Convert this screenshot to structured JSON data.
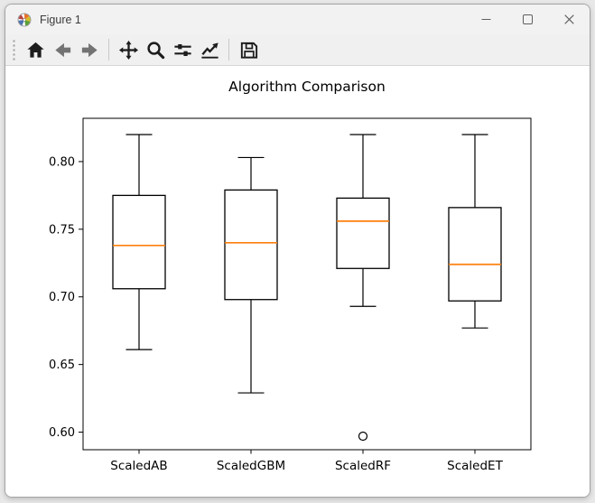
{
  "window": {
    "title": "Figure 1",
    "controls": [
      {
        "name": "minimize"
      },
      {
        "name": "maximize"
      },
      {
        "name": "close"
      }
    ]
  },
  "toolbar": {
    "buttons": [
      {
        "name": "home",
        "icon": "home-icon"
      },
      {
        "name": "back",
        "icon": "arrow-left-icon",
        "enabled": false
      },
      {
        "name": "forward",
        "icon": "arrow-right-icon",
        "enabled": false
      },
      {
        "name": "pan",
        "icon": "move-cross-icon"
      },
      {
        "name": "zoom",
        "icon": "magnifier-icon"
      },
      {
        "name": "configure-subplots",
        "icon": "sliders-icon"
      },
      {
        "name": "edit-parameters",
        "icon": "line-chart-icon"
      },
      {
        "name": "save",
        "icon": "floppy-disk-icon"
      }
    ]
  },
  "chart_data": {
    "type": "boxplot",
    "title": "Algorithm Comparison",
    "categories": [
      "ScaledAB",
      "ScaledGBM",
      "ScaledRF",
      "ScaledET"
    ],
    "boxes": [
      {
        "label": "ScaledAB",
        "whisker_low": 0.661,
        "q1": 0.706,
        "median": 0.738,
        "q3": 0.775,
        "whisker_high": 0.82,
        "outliers": []
      },
      {
        "label": "ScaledGBM",
        "whisker_low": 0.629,
        "q1": 0.698,
        "median": 0.74,
        "q3": 0.779,
        "whisker_high": 0.803,
        "outliers": []
      },
      {
        "label": "ScaledRF",
        "whisker_low": 0.693,
        "q1": 0.721,
        "median": 0.756,
        "q3": 0.773,
        "whisker_high": 0.82,
        "outliers": [
          0.597
        ]
      },
      {
        "label": "ScaledET",
        "whisker_low": 0.677,
        "q1": 0.697,
        "median": 0.724,
        "q3": 0.766,
        "whisker_high": 0.82,
        "outliers": []
      }
    ],
    "yticks": [
      0.6,
      0.65,
      0.7,
      0.75,
      0.8
    ],
    "ylim": [
      0.587,
      0.832
    ],
    "grid": false,
    "legend": null,
    "xlabel": "",
    "ylabel": "",
    "median_color": "#ff7f0e",
    "box_color": "#000000",
    "background_color": "#ffffff"
  }
}
